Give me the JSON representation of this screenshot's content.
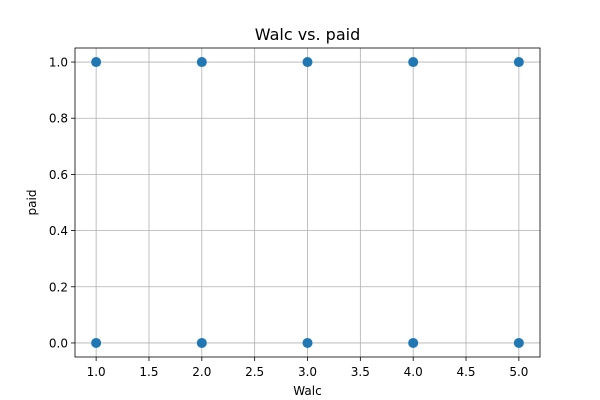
{
  "chart_data": {
    "type": "scatter",
    "title": "Walc vs. paid",
    "xlabel": "Walc",
    "ylabel": "paid",
    "xlim": [
      0.8,
      5.2
    ],
    "ylim": [
      -0.05,
      1.05
    ],
    "xticks": [
      1.0,
      1.5,
      2.0,
      2.5,
      3.0,
      3.5,
      4.0,
      4.5,
      5.0
    ],
    "xtick_labels": [
      "1.0",
      "1.5",
      "2.0",
      "2.5",
      "3.0",
      "3.5",
      "4.0",
      "4.5",
      "5.0"
    ],
    "yticks": [
      0.0,
      0.2,
      0.4,
      0.6,
      0.8,
      1.0
    ],
    "ytick_labels": [
      "0.0",
      "0.2",
      "0.4",
      "0.6",
      "0.8",
      "1.0"
    ],
    "grid": true,
    "marker_color": "#1f77b4",
    "points": [
      {
        "x": 1,
        "y": 1
      },
      {
        "x": 2,
        "y": 1
      },
      {
        "x": 3,
        "y": 1
      },
      {
        "x": 4,
        "y": 1
      },
      {
        "x": 5,
        "y": 1
      },
      {
        "x": 1,
        "y": 0
      },
      {
        "x": 2,
        "y": 0
      },
      {
        "x": 3,
        "y": 0
      },
      {
        "x": 4,
        "y": 0
      },
      {
        "x": 5,
        "y": 0
      }
    ]
  }
}
